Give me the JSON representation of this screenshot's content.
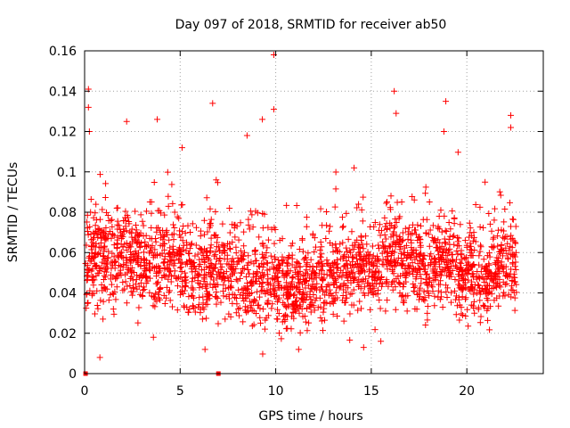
{
  "chart_data": {
    "type": "scatter",
    "title": "Day 097 of 2018, SRMTID for receiver ab50",
    "xlabel": "GPS time / hours",
    "ylabel": "SRMTID / TECUs",
    "xlim": [
      0,
      24
    ],
    "ylim": [
      0,
      0.16
    ],
    "xticks": [
      0,
      5,
      10,
      15,
      20
    ],
    "xtick_labels": [
      "0",
      "5",
      "10",
      "15",
      "20"
    ],
    "yticks": [
      0,
      0.02,
      0.04,
      0.06,
      0.08,
      0.1,
      0.12,
      0.14,
      0.16
    ],
    "ytick_labels": [
      "0",
      "0.02",
      "0.04",
      "0.06",
      "0.08",
      "0.1",
      "0.12",
      "0.14",
      "0.16"
    ],
    "grid": true,
    "marker": "+",
    "series": [
      {
        "name": "SRMTID",
        "color": "#ff0000",
        "points_note": "approximately 2500 plus-marker points; envelope sampled below (hour, typical-mean, typical-spread, max)",
        "envelope": [
          {
            "x": 0.0,
            "mean": 0.055,
            "spread": 0.02,
            "max": 0.141
          },
          {
            "x": 1.0,
            "mean": 0.058,
            "spread": 0.022,
            "max": 0.113
          },
          {
            "x": 2.0,
            "mean": 0.058,
            "spread": 0.02,
            "max": 0.125
          },
          {
            "x": 3.0,
            "mean": 0.055,
            "spread": 0.02,
            "max": 0.107
          },
          {
            "x": 4.0,
            "mean": 0.055,
            "spread": 0.02,
            "max": 0.126
          },
          {
            "x": 5.0,
            "mean": 0.055,
            "spread": 0.02,
            "max": 0.112
          },
          {
            "x": 6.0,
            "mean": 0.05,
            "spread": 0.02,
            "max": 0.134
          },
          {
            "x": 7.0,
            "mean": 0.052,
            "spread": 0.02,
            "max": 0.116
          },
          {
            "x": 8.0,
            "mean": 0.048,
            "spread": 0.02,
            "max": 0.118
          },
          {
            "x": 9.0,
            "mean": 0.048,
            "spread": 0.022,
            "max": 0.126
          },
          {
            "x": 10.0,
            "mean": 0.045,
            "spread": 0.02,
            "max": 0.158
          },
          {
            "x": 11.0,
            "mean": 0.04,
            "spread": 0.016,
            "max": 0.097
          },
          {
            "x": 12.0,
            "mean": 0.045,
            "spread": 0.018,
            "max": 0.109
          },
          {
            "x": 13.0,
            "mean": 0.048,
            "spread": 0.018,
            "max": 0.095
          },
          {
            "x": 14.0,
            "mean": 0.05,
            "spread": 0.02,
            "max": 0.102
          },
          {
            "x": 15.0,
            "mean": 0.052,
            "spread": 0.02,
            "max": 0.096
          },
          {
            "x": 16.0,
            "mean": 0.058,
            "spread": 0.022,
            "max": 0.14
          },
          {
            "x": 17.0,
            "mean": 0.055,
            "spread": 0.02,
            "max": 0.13
          },
          {
            "x": 18.0,
            "mean": 0.052,
            "spread": 0.02,
            "max": 0.123
          },
          {
            "x": 19.0,
            "mean": 0.055,
            "spread": 0.02,
            "max": 0.135
          },
          {
            "x": 20.0,
            "mean": 0.048,
            "spread": 0.02,
            "max": 0.107
          },
          {
            "x": 21.0,
            "mean": 0.045,
            "spread": 0.018,
            "max": 0.095
          },
          {
            "x": 22.0,
            "mean": 0.058,
            "spread": 0.02,
            "max": 0.128
          },
          {
            "x": 22.6,
            "mean": 0.055,
            "spread": 0.018,
            "max": 0.09
          }
        ],
        "outliers": [
          {
            "x": 0.2,
            "y": 0.141
          },
          {
            "x": 0.2,
            "y": 0.132
          },
          {
            "x": 0.25,
            "y": 0.12
          },
          {
            "x": 2.2,
            "y": 0.125
          },
          {
            "x": 3.8,
            "y": 0.126
          },
          {
            "x": 6.7,
            "y": 0.134
          },
          {
            "x": 9.3,
            "y": 0.126
          },
          {
            "x": 9.9,
            "y": 0.131
          },
          {
            "x": 9.9,
            "y": 0.158
          },
          {
            "x": 16.2,
            "y": 0.14
          },
          {
            "x": 16.3,
            "y": 0.129
          },
          {
            "x": 18.9,
            "y": 0.135
          },
          {
            "x": 18.8,
            "y": 0.12
          },
          {
            "x": 22.3,
            "y": 0.128
          },
          {
            "x": 22.3,
            "y": 0.122
          },
          {
            "x": 14.1,
            "y": 0.102
          },
          {
            "x": 8.5,
            "y": 0.118
          },
          {
            "x": 5.1,
            "y": 0.112
          },
          {
            "x": 0.8,
            "y": 0.008
          },
          {
            "x": 3.6,
            "y": 0.018
          },
          {
            "x": 6.3,
            "y": 0.012
          },
          {
            "x": 11.2,
            "y": 0.012
          },
          {
            "x": 14.6,
            "y": 0.013
          },
          {
            "x": 15.5,
            "y": 0.016
          }
        ],
        "zero_markers": [
          {
            "x": 0.05,
            "y": 0.0
          },
          {
            "x": 7.0,
            "y": 0.0
          }
        ]
      }
    ]
  }
}
